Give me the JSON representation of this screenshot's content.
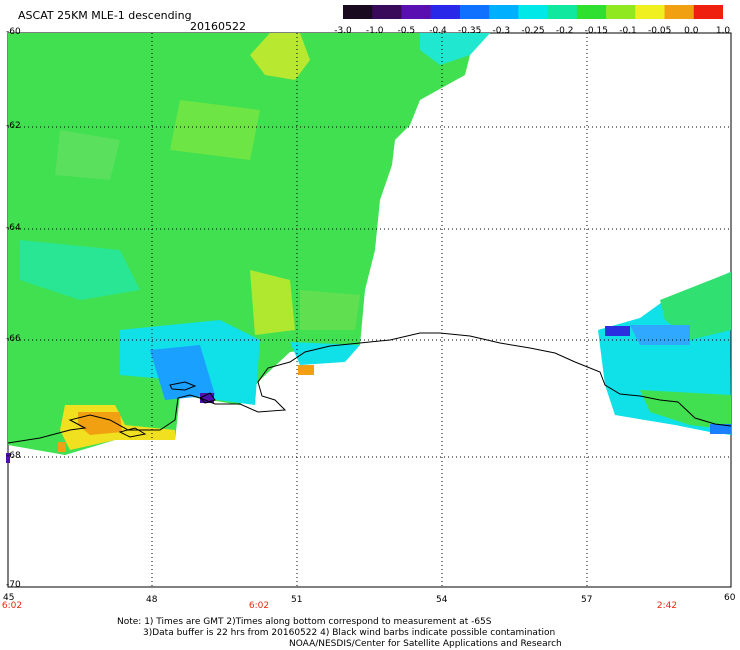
{
  "header": {
    "title": "ASCAT 25KM MLE-1 descending",
    "date": "20160522"
  },
  "colorbar": {
    "labels": [
      "-3.0",
      "-1.0",
      "-0.5",
      "-0.4",
      "-0.35",
      "-0.3",
      "-0.25",
      "-0.2",
      "-0.15",
      "-0.1",
      "-0.05",
      "0.0",
      "1.0"
    ],
    "colors": [
      "#1a0a1f",
      "#3a0a5a",
      "#5a10b0",
      "#2a28e8",
      "#1070ff",
      "#00b0ff",
      "#00e8e8",
      "#10e8a0",
      "#30e030",
      "#90e820",
      "#f0f020",
      "#f0a010",
      "#f02010"
    ]
  },
  "axes": {
    "lat_labels": [
      "-60",
      "-62",
      "-64",
      "-66",
      "-68",
      "-70"
    ],
    "lon_labels": [
      "45",
      "48",
      "51",
      "54",
      "57",
      "60"
    ],
    "time_labels": [
      "6:02",
      "6:02",
      "2:42"
    ]
  },
  "notes": {
    "line1": "Note: 1) Times are GMT 2)Times along bottom correspond to measurement at -65S",
    "line2": "3)Data buffer is 22 hrs from 20160522 4) Black wind barbs indicate possible contamination",
    "line3": "NOAA/NESDIS/Center for Satellite Applications and Research"
  }
}
